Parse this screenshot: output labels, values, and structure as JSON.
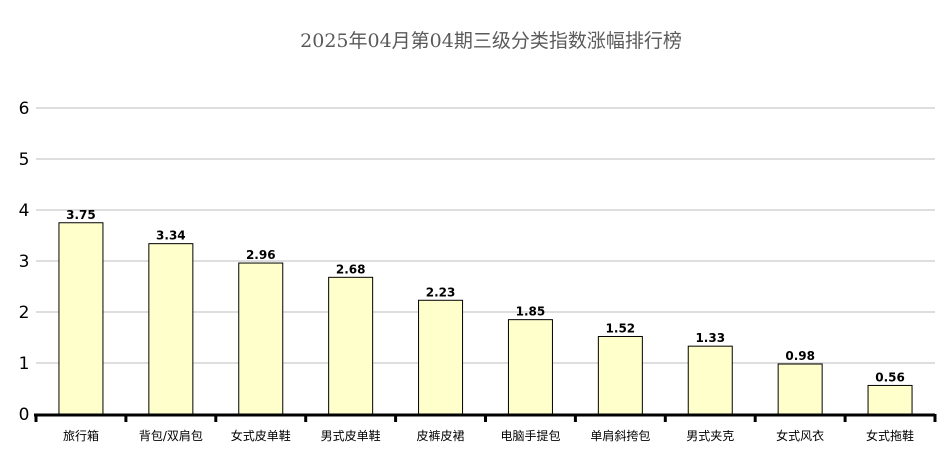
{
  "chart_data": {
    "type": "bar",
    "title": "2025年04月第04期三级分类指数涨幅排行榜",
    "xlabel": "",
    "ylabel": "",
    "categories": [
      "旅行箱",
      "背包/双肩包",
      "女式皮单鞋",
      "男式皮单鞋",
      "皮裤皮裙",
      "电脑手提包",
      "单肩斜挎包",
      "男式夹克",
      "女式风衣",
      "女式拖鞋"
    ],
    "values": [
      3.75,
      3.34,
      2.96,
      2.68,
      2.23,
      1.85,
      1.52,
      1.33,
      0.98,
      0.56
    ],
    "value_labels": [
      "3.75",
      "3.34",
      "2.96",
      "2.68",
      "2.23",
      "1.85",
      "1.52",
      "1.33",
      "0.98",
      "0.56"
    ],
    "ylim": [
      0,
      6
    ],
    "yticks": [
      "0",
      "1",
      "2",
      "3",
      "4",
      "5",
      "6"
    ],
    "grid": true,
    "legend": "none",
    "bar_color": "#ffffcc",
    "bar_border_color": "#000000",
    "grid_color": "#bdbdbd",
    "title_color": "#5a5a5a"
  }
}
